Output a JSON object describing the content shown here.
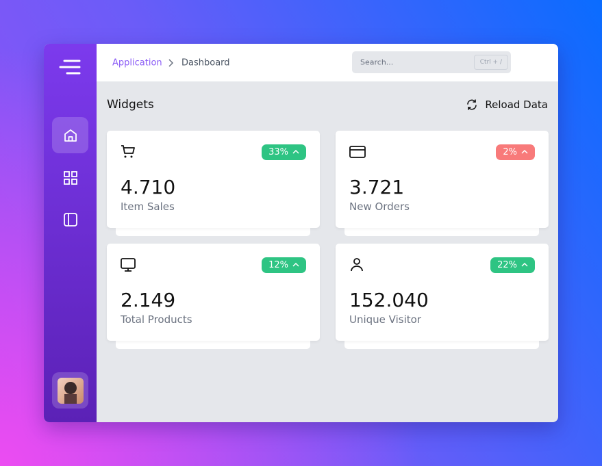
{
  "breadcrumb": [
    "Application",
    "Dashboard"
  ],
  "search": {
    "placeholder": "Search...",
    "shortcut": "Ctrl + /"
  },
  "section": {
    "title": "Widgets",
    "action": "Reload Data"
  },
  "widgets": [
    {
      "icon": "cart",
      "value": "4.710",
      "label": "Item Sales",
      "change": "33%",
      "badge_color": "#2ec483"
    },
    {
      "icon": "card",
      "value": "3.721",
      "label": "New Orders",
      "change": "2%",
      "badge_color": "#f87a7a"
    },
    {
      "icon": "monitor",
      "value": "2.149",
      "label": "Total Products",
      "change": "12%",
      "badge_color": "#2ec483"
    },
    {
      "icon": "user",
      "value": "152.040",
      "label": "Unique Visitor",
      "change": "22%",
      "badge_color": "#2ec483"
    }
  ]
}
